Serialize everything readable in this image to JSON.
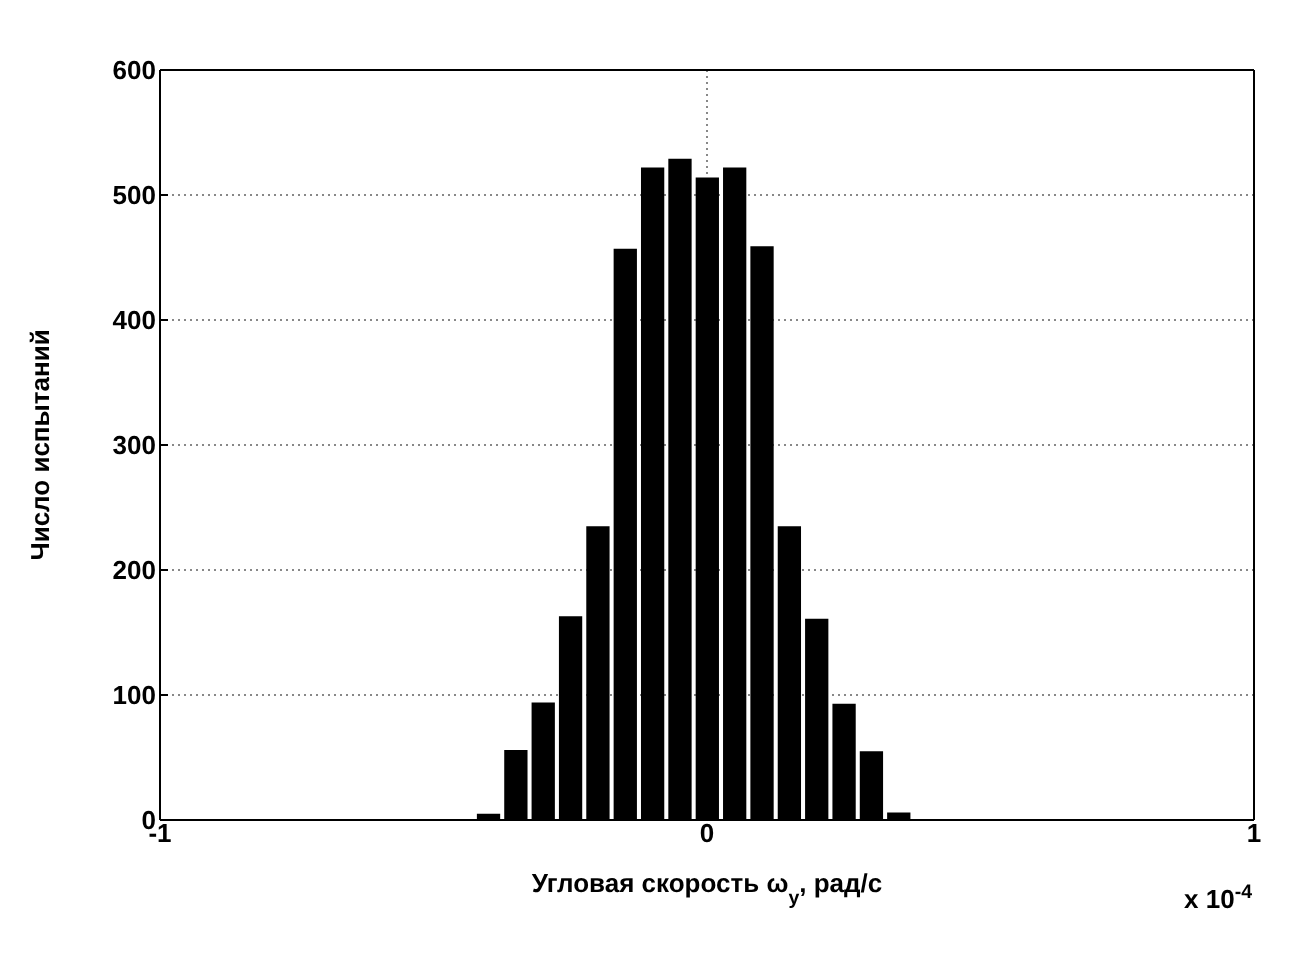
{
  "chart_data": {
    "type": "histogram",
    "xlabel": "Угловая скорость ω$_{y}$, рад/с",
    "ylabel": "Число испытаний",
    "bins": [
      -0.425,
      -0.375,
      -0.325,
      -0.275,
      -0.225,
      -0.175,
      -0.125,
      -0.075,
      -0.025,
      0.025,
      0.075,
      0.125,
      0.175,
      0.225,
      0.275,
      0.325,
      0.375
    ],
    "values": [
      5,
      56,
      94,
      163,
      235,
      457,
      522,
      529,
      514,
      522,
      459,
      235,
      161,
      93,
      55,
      6
    ],
    "color": "#000000",
    "xlim": [
      -1,
      1
    ],
    "xticks": [
      -1,
      0,
      1
    ],
    "ylim": [
      0,
      600
    ],
    "yticks": [
      0,
      100,
      200,
      300,
      400,
      500,
      600
    ],
    "grid": true,
    "annotations": [
      "x 10$^{-4}$"
    ]
  }
}
